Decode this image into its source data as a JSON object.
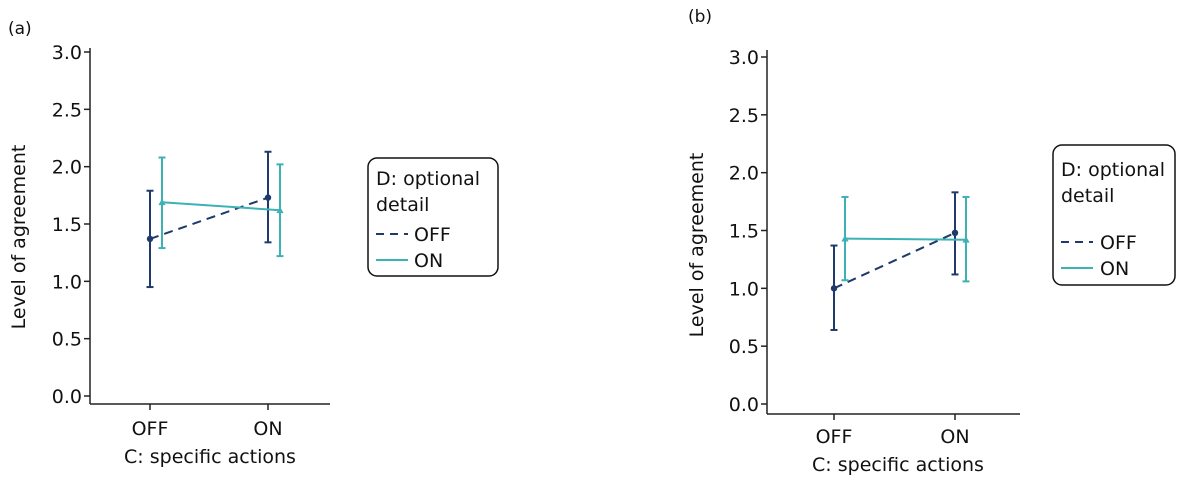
{
  "chart_data": [
    {
      "panel_label": "(a)",
      "type": "line",
      "xlabel": "C: specific actions",
      "ylabel": "Level of agreement",
      "categories": [
        "OFF",
        "ON"
      ],
      "ylim": [
        0,
        3
      ],
      "yticks": [
        "0.0",
        "0.5",
        "1.0",
        "1.5",
        "2.0",
        "2.5",
        "3.0"
      ],
      "legend_title": "D: optional detail",
      "legend_title_lines": [
        "D: optional",
        "detail"
      ],
      "legend_placement": "right",
      "grid": false,
      "error_bars": true,
      "series": [
        {
          "name": "OFF",
          "style": "dashed",
          "marker": "circle",
          "color": "#1f3a6b",
          "values": [
            1.37,
            1.73
          ],
          "lower": [
            0.95,
            1.34
          ],
          "upper": [
            1.79,
            2.13
          ]
        },
        {
          "name": "ON",
          "style": "solid",
          "marker": "triangle",
          "color": "#3cb2b5",
          "values": [
            1.69,
            1.62
          ],
          "lower": [
            1.29,
            1.22
          ],
          "upper": [
            2.08,
            2.02
          ]
        }
      ]
    },
    {
      "panel_label": "(b)",
      "type": "line",
      "xlabel": "C: specific actions",
      "ylabel": "Level of agreement",
      "categories": [
        "OFF",
        "ON"
      ],
      "ylim": [
        0,
        3
      ],
      "yticks": [
        "0.0",
        "0.5",
        "1.0",
        "1.5",
        "2.0",
        "2.5",
        "3.0"
      ],
      "legend_title": "D: optional detail",
      "legend_title_lines": [
        "D: optional",
        "detail"
      ],
      "legend_placement": "right",
      "grid": false,
      "error_bars": true,
      "series": [
        {
          "name": "OFF",
          "style": "dashed",
          "marker": "circle",
          "color": "#1f3a6b",
          "values": [
            1.0,
            1.48
          ],
          "lower": [
            0.64,
            1.12
          ],
          "upper": [
            1.37,
            1.83
          ]
        },
        {
          "name": "ON",
          "style": "solid",
          "marker": "triangle",
          "color": "#3cb2b5",
          "values": [
            1.43,
            1.42
          ],
          "lower": [
            1.07,
            1.06
          ],
          "upper": [
            1.79,
            1.79
          ]
        }
      ]
    }
  ]
}
